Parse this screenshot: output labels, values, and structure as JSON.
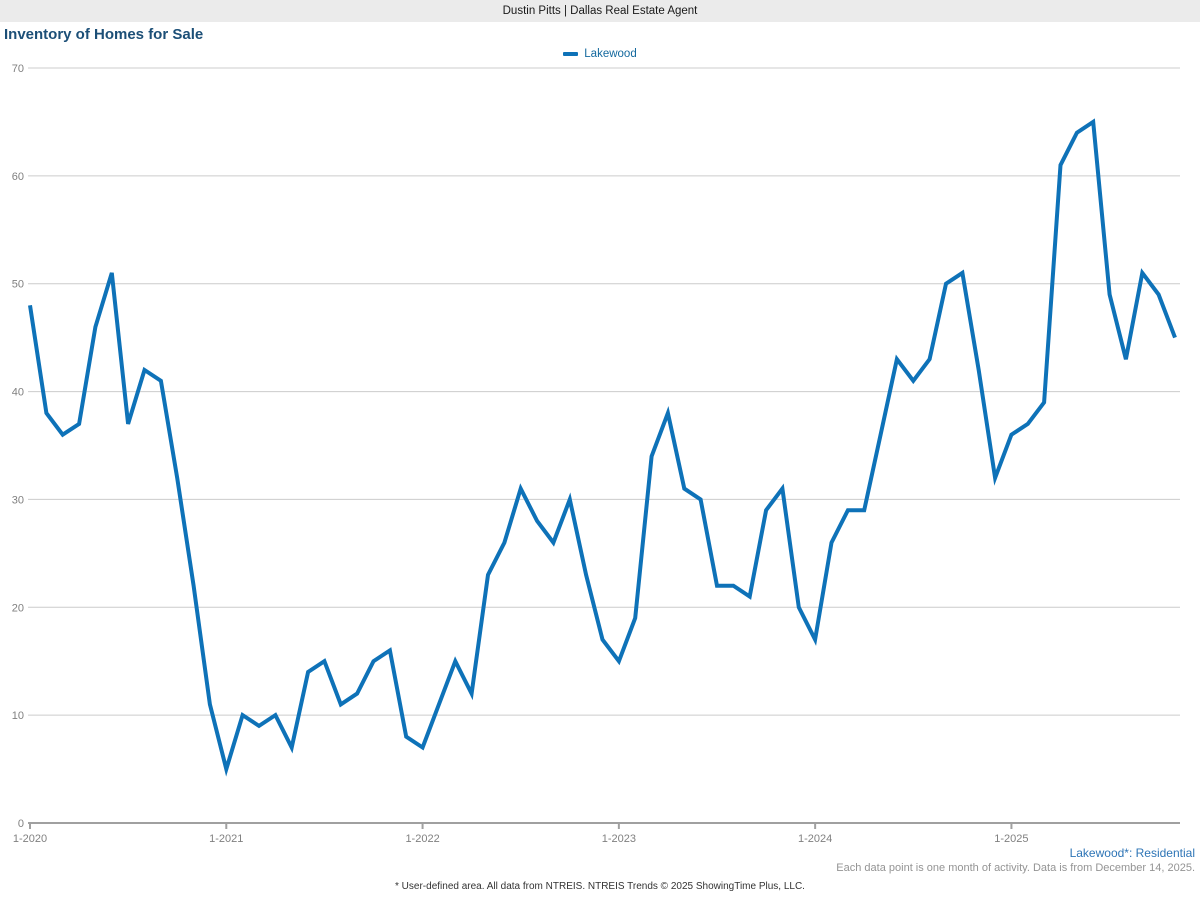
{
  "header": {
    "title": "Dustin Pitts | Dallas Real Estate Agent"
  },
  "chart": {
    "title": "Inventory of Homes for Sale",
    "legend": {
      "label": "Lakewood"
    },
    "footnotes": {
      "series_note": "Lakewood*: Residential",
      "data_note": "Each data point is one month of activity. Data is from December 14, 2025.",
      "disclaimer": "* User-defined area. All data from NTREIS. NTREIS Trends © 2025 ShowingTime Plus, LLC."
    }
  },
  "colors": {
    "line": "#0e72b8",
    "title": "#1c4f77",
    "legend_text": "#14699e",
    "grid": "#cccccc",
    "axis": "#a0a0a0",
    "axis_label": "#808080",
    "header_bg": "#ebebeb",
    "series_note": "#2e75b6",
    "data_note": "#949494"
  },
  "chart_data": {
    "type": "line",
    "title": "Inventory of Homes for Sale",
    "xlabel": "",
    "ylabel": "",
    "ylim": [
      0,
      70
    ],
    "y_ticks": [
      0,
      10,
      20,
      30,
      40,
      50,
      60,
      70
    ],
    "grid": "horizontal",
    "legend_position": "top-center",
    "x": [
      "1-2020",
      "2-2020",
      "3-2020",
      "4-2020",
      "5-2020",
      "6-2020",
      "7-2020",
      "8-2020",
      "9-2020",
      "10-2020",
      "11-2020",
      "12-2020",
      "1-2021",
      "2-2021",
      "3-2021",
      "4-2021",
      "5-2021",
      "6-2021",
      "7-2021",
      "8-2021",
      "9-2021",
      "10-2021",
      "11-2021",
      "12-2021",
      "1-2022",
      "2-2022",
      "3-2022",
      "4-2022",
      "5-2022",
      "6-2022",
      "7-2022",
      "8-2022",
      "9-2022",
      "10-2022",
      "11-2022",
      "12-2022",
      "1-2023",
      "2-2023",
      "3-2023",
      "4-2023",
      "5-2023",
      "6-2023",
      "7-2023",
      "8-2023",
      "9-2023",
      "10-2023",
      "11-2023",
      "12-2023",
      "1-2024",
      "2-2024",
      "3-2024",
      "4-2024",
      "5-2024",
      "6-2024",
      "7-2024",
      "8-2024",
      "9-2024",
      "10-2024",
      "11-2024",
      "12-2024",
      "1-2025",
      "2-2025",
      "3-2025",
      "4-2025",
      "5-2025",
      "6-2025",
      "7-2025",
      "8-2025",
      "9-2025",
      "10-2025",
      "11-2025"
    ],
    "x_tick_labels": [
      "1-2020",
      "1-2021",
      "1-2022",
      "1-2023",
      "1-2024",
      "1-2025"
    ],
    "x_tick_indices": [
      0,
      12,
      24,
      36,
      48,
      60
    ],
    "series": [
      {
        "name": "Lakewood",
        "color": "#0e72b8",
        "values": [
          48,
          38,
          36,
          37,
          46,
          51,
          37,
          42,
          41,
          32,
          22,
          11,
          5,
          10,
          9,
          10,
          7,
          14,
          15,
          11,
          12,
          15,
          16,
          8,
          7,
          11,
          15,
          12,
          23,
          26,
          31,
          28,
          26,
          30,
          23,
          17,
          15,
          19,
          34,
          38,
          31,
          30,
          22,
          22,
          21,
          29,
          31,
          20,
          17,
          26,
          29,
          29,
          36,
          43,
          41,
          43,
          50,
          51,
          42,
          32,
          36,
          37,
          39,
          61,
          64,
          65,
          49,
          43,
          51,
          49,
          45
        ]
      }
    ]
  }
}
